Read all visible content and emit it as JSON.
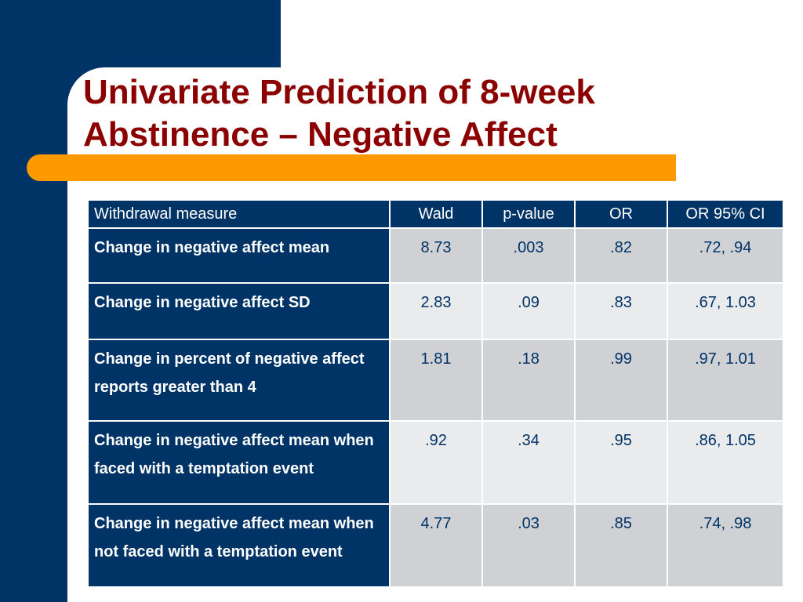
{
  "slide": {
    "title_line1": "Univariate Prediction of 8-week",
    "title_line2": "Abstinence – Negative Affect"
  },
  "table": {
    "headers": [
      "Withdrawal measure",
      "Wald",
      "p-value",
      "OR",
      "OR 95% CI"
    ],
    "rows": [
      {
        "measure": "Change in negative affect mean",
        "wald": "8.73",
        "p_value": ".003",
        "or": ".82",
        "ci": ".72, .94"
      },
      {
        "measure": "Change in negative affect SD",
        "wald": "2.83",
        "p_value": ".09",
        "or": ".83",
        "ci": ".67, 1.03"
      },
      {
        "measure": "Change in percent of negative affect reports greater than 4",
        "wald": "1.81",
        "p_value": ".18",
        "or": ".99",
        "ci": ".97, 1.01"
      },
      {
        "measure": "Change in negative affect mean when faced with a temptation event",
        "wald": ".92",
        "p_value": ".34",
        "or": ".95",
        "ci": ".86, 1.05"
      },
      {
        "measure": "Change in negative affect mean when not faced with a temptation event",
        "wald": "4.77",
        "p_value": ".03",
        "or": ".85",
        "ci": ".74, .98"
      }
    ]
  },
  "colors": {
    "navy": "#003366",
    "title_red": "#8b0000",
    "orange": "#ff9900",
    "cell_gray_dark": "#cfd1d4",
    "cell_gray_light": "#eaebec"
  }
}
